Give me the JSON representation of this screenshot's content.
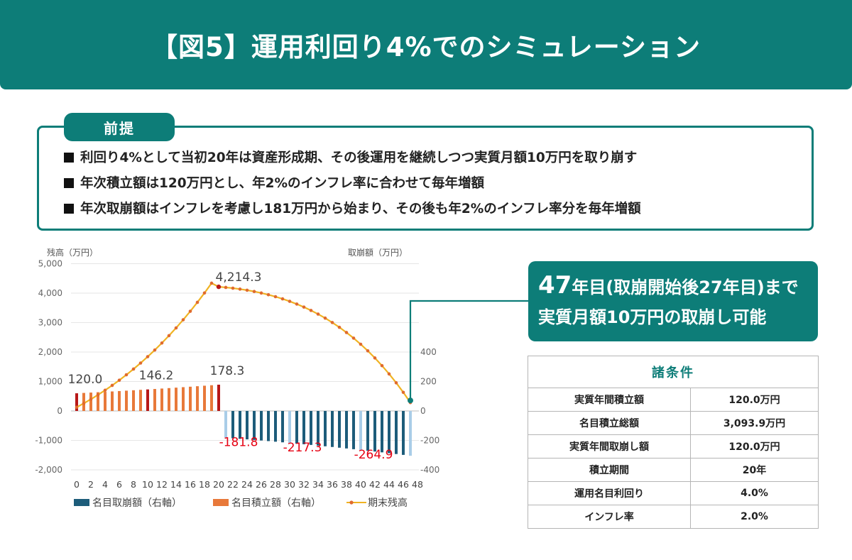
{
  "title": "【図5】運用利回り4%でのシミュレーション",
  "premise": {
    "label": "前提",
    "items": [
      "利回り4%として当初20年は資産形成期、その後運用を継続しつつ実質月額10万円を取り崩す",
      "年次積立額は120万円とし、年2%のインフレ率に合わせて毎年増額",
      "年次取崩額はインフレを考慮し181万円から始まり、その後も年2%のインフレ率分を毎年増額"
    ]
  },
  "note": {
    "line1_num": "47",
    "line1_rest": "年目(取崩開始後27年目)まで",
    "line2": "実質月額10万円の取崩し可能"
  },
  "conditions": {
    "title": "諸条件",
    "rows": [
      {
        "label": "実質年間積立額",
        "value": "120.0万円"
      },
      {
        "label": "名目積立総額",
        "value": "3,093.9万円"
      },
      {
        "label": "実質年間取崩し額",
        "value": "120.0万円"
      },
      {
        "label": "積立期間",
        "value": "20年"
      },
      {
        "label": "運用名目利回り",
        "value": "4.0%"
      },
      {
        "label": "インフレ率",
        "value": "2.0%"
      }
    ]
  },
  "chart_data": {
    "type": "bar+line",
    "left_axis_label": "残高（万円）",
    "right_axis_label": "取崩額（万円）",
    "left_ylim": [
      -2000,
      5000
    ],
    "left_ticks": [
      "5,000",
      "4,000",
      "3,000",
      "2,000",
      "1,000",
      "0",
      "-1,000",
      "-2,000"
    ],
    "right_ylim": [
      -400,
      400
    ],
    "right_ticks": [
      "400",
      "200",
      "0",
      "-200",
      "-400"
    ],
    "x": [
      0,
      1,
      2,
      3,
      4,
      5,
      6,
      7,
      8,
      9,
      10,
      11,
      12,
      13,
      14,
      15,
      16,
      17,
      18,
      19,
      20,
      21,
      22,
      23,
      24,
      25,
      26,
      27,
      28,
      29,
      30,
      31,
      32,
      33,
      34,
      35,
      36,
      37,
      38,
      39,
      40,
      41,
      42,
      43,
      44,
      45,
      46,
      47
    ],
    "x_tick_labels": [
      "0",
      "2",
      "4",
      "6",
      "8",
      "10",
      "12",
      "14",
      "16",
      "18",
      "20",
      "22",
      "24",
      "26",
      "28",
      "30",
      "32",
      "34",
      "36",
      "38",
      "40",
      "42",
      "44",
      "46",
      "48"
    ],
    "series": [
      {
        "name": "名目取崩額（右軸）",
        "color": "#1d5c7a",
        "highlight_color": "#a9cde8",
        "values": [
          0,
          0,
          0,
          0,
          0,
          0,
          0,
          0,
          0,
          0,
          0,
          0,
          0,
          0,
          0,
          0,
          0,
          0,
          0,
          0,
          0,
          -181.8,
          -185.4,
          -189.1,
          -192.9,
          -196.8,
          -200.7,
          -204.7,
          -208.8,
          -213.0,
          -217.3,
          -221.6,
          -226.0,
          -230.6,
          -235.2,
          -239.9,
          -244.7,
          -249.6,
          -254.6,
          -259.7,
          -264.9,
          -270.2,
          -275.6,
          -281.1,
          -286.7,
          -292.5,
          -298.3,
          -304.3
        ]
      },
      {
        "name": "名目積立額（右軸）",
        "color": "#e8793a",
        "highlight_color": "#b81818",
        "values": [
          120.0,
          122.4,
          124.8,
          127.3,
          129.9,
          132.5,
          135.1,
          137.8,
          140.6,
          143.4,
          146.2,
          149.2,
          152.2,
          155.2,
          158.3,
          161.5,
          164.7,
          168.0,
          171.4,
          174.8,
          178.3,
          0,
          0,
          0,
          0,
          0,
          0,
          0,
          0,
          0,
          0,
          0,
          0,
          0,
          0,
          0,
          0,
          0,
          0,
          0,
          0,
          0,
          0,
          0,
          0,
          0,
          0,
          0
        ]
      },
      {
        "name": "期末残高",
        "color": "#f0b323",
        "marker_color": "#e06a2e",
        "values": [
          124.8,
          257.2,
          397.4,
          545.7,
          702.6,
          868.2,
          1043.1,
          1227.6,
          1422.0,
          1626.8,
          1842.1,
          2068.6,
          2306.7,
          2556.8,
          2819.4,
          3095.0,
          3384.2,
          3687.3,
          4005.1,
          4338.3,
          4214.3,
          4193.8,
          4168.0,
          4136.5,
          4099.0,
          4055.0,
          4004.1,
          3945.7,
          3879.5,
          3804.9,
          3721.5,
          3628.6,
          3525.8,
          3412.4,
          3287.8,
          3151.3,
          3002.3,
          2839.9,
          2663.5,
          2472.1,
          2264.8,
          2040.7,
          1798.8,
          1538.0,
          1257.3,
          955.5,
          631.5,
          283.9
        ]
      }
    ],
    "data_labels": [
      {
        "x": 0,
        "series": "名目積立額（右軸）",
        "text": "120.0"
      },
      {
        "x": 10,
        "series": "名目積立額（右軸）",
        "text": "146.2"
      },
      {
        "x": 20,
        "series": "名目積立額（右軸）",
        "text": "178.3"
      },
      {
        "x": 20,
        "series": "期末残高",
        "text": "4,214.3"
      },
      {
        "x": 21,
        "series": "名目取崩額（右軸）",
        "text": "-181.8"
      },
      {
        "x": 30,
        "series": "名目取崩額（右軸）",
        "text": "-217.3"
      },
      {
        "x": 40,
        "series": "名目取崩額（右軸）",
        "text": "-264.9"
      }
    ],
    "highlight_years": [
      0,
      10,
      20,
      21,
      30,
      40,
      47
    ],
    "legend": [
      "名目取崩額（右軸）",
      "名目積立額（右軸）",
      "期末残高"
    ],
    "legend_position": "bottom"
  },
  "colors": {
    "brand": "#0d7d78",
    "positive_label": "#444444",
    "negative_label": "#e60012"
  }
}
